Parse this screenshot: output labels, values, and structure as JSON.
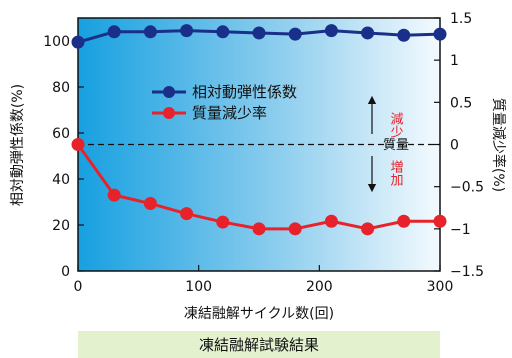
{
  "chart_data": {
    "type": "line",
    "caption": "凍結融解試験結果",
    "xlabel": "凍結融解サイクル数(回)",
    "ylabel_left": "相対動弾性係数(%)",
    "ylabel_right": "質量減少率(%)",
    "xlim": [
      0,
      300
    ],
    "ylim_left": [
      0,
      110
    ],
    "ylim_right": [
      -1.5,
      1.5
    ],
    "x_ticks": [
      "0",
      "100",
      "200",
      "300"
    ],
    "y_ticks_left": [
      "0",
      "20",
      "40",
      "60",
      "80",
      "100"
    ],
    "y_ticks_right": [
      "1.5",
      "1",
      "0.5",
      "0",
      "−0.5",
      "−1",
      "−1.5"
    ],
    "series": [
      {
        "name": "相対動弾性係数",
        "axis": "left",
        "color": "#1a2f8a",
        "x": [
          0,
          30,
          60,
          90,
          120,
          150,
          180,
          210,
          240,
          270,
          300
        ],
        "values": [
          99.5,
          104,
          104,
          104.5,
          104,
          103.5,
          103,
          104.5,
          103.5,
          102.5,
          103
        ]
      },
      {
        "name": "質量減少率",
        "axis": "right",
        "color": "#e8222a",
        "x": [
          0,
          30,
          60,
          90,
          120,
          150,
          180,
          210,
          240,
          270,
          300
        ],
        "values": [
          0.0,
          -0.6,
          -0.7,
          -0.82,
          -0.92,
          -1.0,
          -1.0,
          -0.91,
          -1.0,
          -0.91,
          -0.91
        ]
      }
    ],
    "annotation": {
      "center": "質量",
      "up": "減少",
      "down": "増加"
    },
    "grid": false,
    "legend_position": "top-left",
    "background": "blue gradient"
  }
}
